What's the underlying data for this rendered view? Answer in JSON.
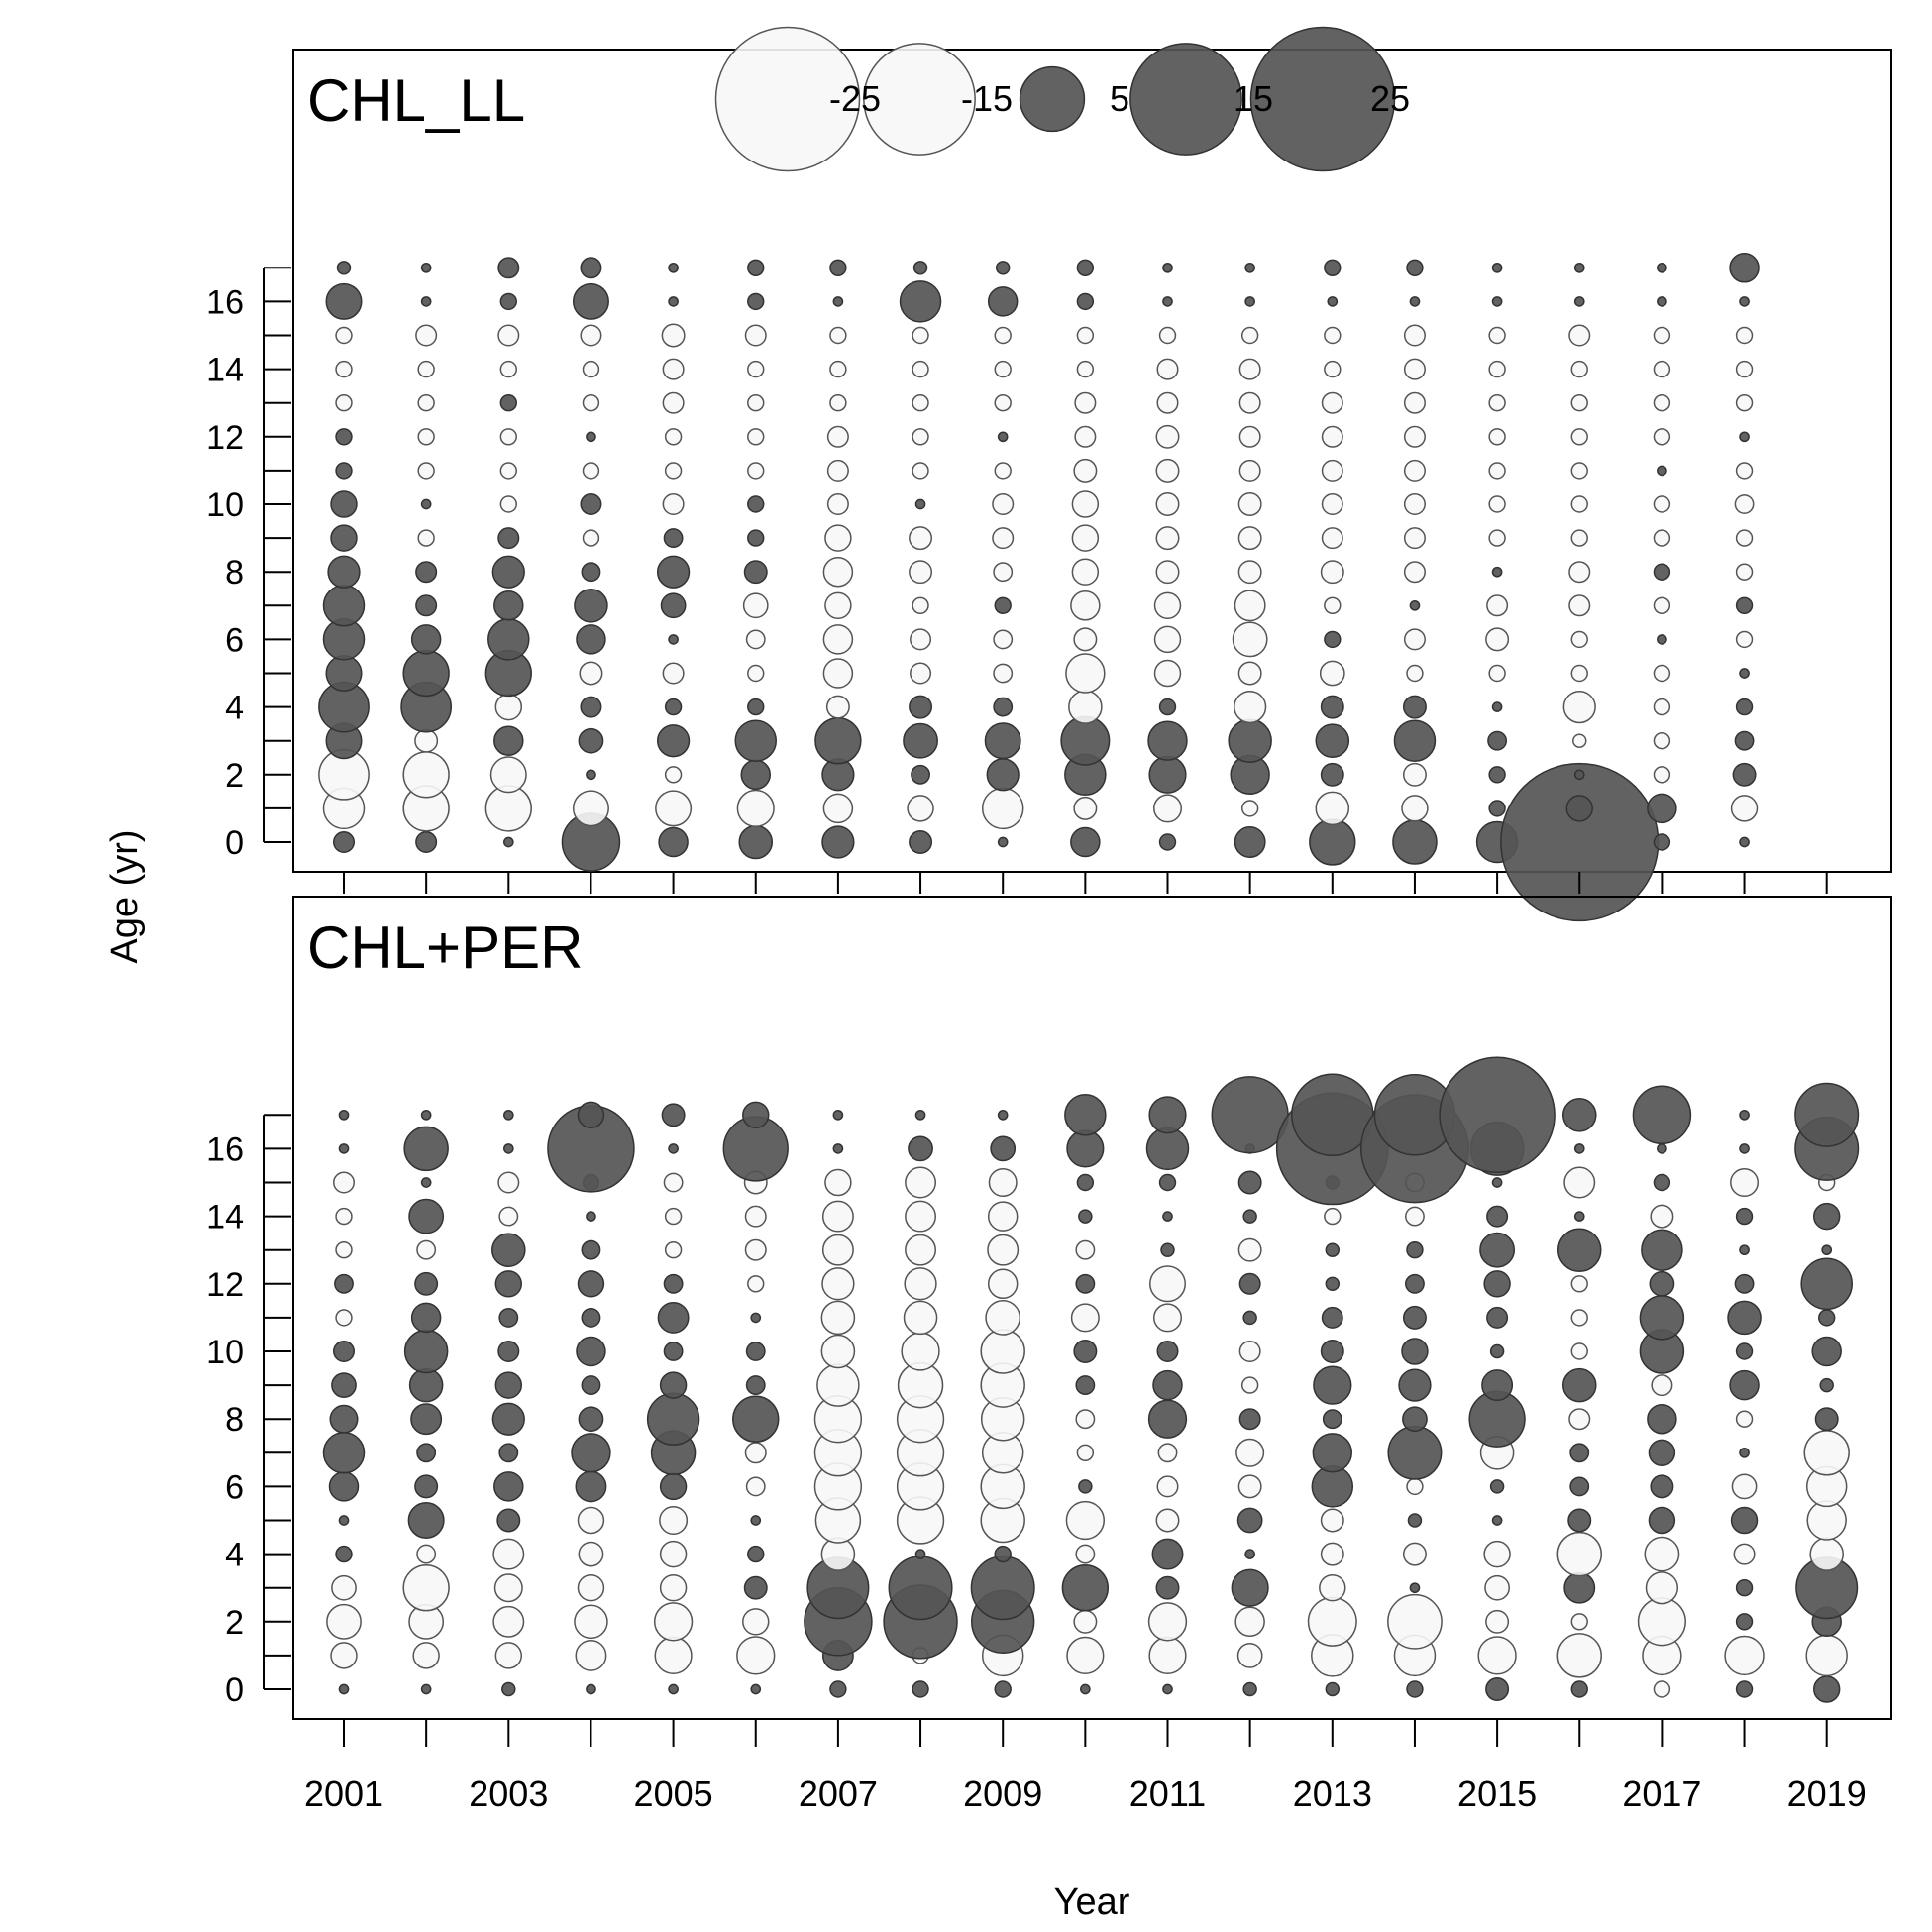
{
  "chart_data": {
    "type": "bubble",
    "x_label": "Year",
    "y_label": "Age (yr)",
    "x_ticks": [
      2001,
      2003,
      2005,
      2007,
      2009,
      2011,
      2013,
      2015,
      2017,
      2019
    ],
    "y_ticks": [
      0,
      2,
      4,
      6,
      8,
      10,
      12,
      14,
      16
    ],
    "ages": [
      0,
      1,
      2,
      3,
      4,
      5,
      6,
      7,
      8,
      9,
      10,
      11,
      12,
      13,
      14,
      15,
      16,
      17
    ],
    "years": [
      2001,
      2002,
      2003,
      2004,
      2005,
      2006,
      2007,
      2008,
      2009,
      2010,
      2011,
      2012,
      2013,
      2014,
      2015,
      2016,
      2017,
      2018,
      2019
    ],
    "positive_color": "#555555",
    "negative_color": "#f7f7f7",
    "legend": {
      "values": [
        -25,
        -15,
        5,
        15,
        25
      ],
      "labels": [
        "-25",
        "-15",
        "5",
        "15",
        "25"
      ]
    },
    "panels": [
      {
        "title": "CHL_LL",
        "note": "residual value per age (index 0..17) for each year",
        "residuals": {
          "2001": [
            0.5,
            -2,
            -3,
            1.5,
            3,
            1.5,
            2,
            2,
            1.2,
            0.8,
            0.8,
            0.3,
            0.3,
            -0.3,
            -0.3,
            -0.3,
            1.5,
            0.2
          ],
          "2002": [
            0.5,
            -2.5,
            -2.5,
            -0.6,
            3,
            2.5,
            1,
            0.5,
            0.5,
            -0.3,
            0.1,
            -0.3,
            -0.3,
            -0.3,
            -0.3,
            -0.5,
            0.1,
            0.1
          ],
          "2003": [
            0.1,
            -2.5,
            -1.5,
            1,
            -0.8,
            2.5,
            2,
            1,
            1.2,
            0.5,
            -0.3,
            -0.3,
            -0.3,
            0.3,
            -0.3,
            -0.5,
            0.3,
            0.5
          ],
          "2004": [
            4,
            -1.5,
            0.1,
            0.7,
            0.5,
            -0.6,
            1,
            1.3,
            0.4,
            -0.3,
            0.5,
            -0.3,
            0.1,
            -0.3,
            -0.3,
            -0.5,
            1.5,
            0.5
          ],
          "2005": [
            1,
            -1.5,
            -0.3,
            1.2,
            0.3,
            -0.5,
            0.1,
            0.7,
            1.2,
            0.4,
            -0.5,
            -0.3,
            -0.3,
            -0.5,
            -0.5,
            -0.6,
            0.1,
            0.1
          ],
          "2006": [
            1.3,
            -1.6,
            1,
            2,
            0.3,
            -0.3,
            -0.4,
            -0.7,
            0.6,
            0.3,
            0.3,
            -0.3,
            -0.3,
            -0.3,
            -0.3,
            -0.5,
            0.3,
            0.3
          ],
          "2007": [
            1.2,
            -1,
            1.2,
            2.5,
            -0.6,
            -1,
            -1,
            -0.8,
            -1,
            -0.8,
            -0.5,
            -0.5,
            -0.5,
            -0.3,
            -0.3,
            -0.3,
            0.1,
            0.3
          ],
          "2008": [
            0.6,
            -0.8,
            0.4,
            1.4,
            0.6,
            -0.5,
            -0.5,
            -0.3,
            -0.6,
            -0.6,
            0.1,
            -0.3,
            -0.3,
            -0.3,
            -0.3,
            -0.3,
            2,
            0.2
          ],
          "2009": [
            0.1,
            -2,
            1.2,
            1.5,
            0.4,
            -0.4,
            -0.4,
            0.3,
            -0.4,
            -0.5,
            -0.5,
            -0.3,
            0.1,
            -0.3,
            -0.3,
            -0.3,
            1,
            0.2
          ],
          "2010": [
            1,
            -0.6,
            2,
            2.8,
            -1.3,
            -1.8,
            -0.6,
            -1,
            -0.8,
            -0.8,
            -0.8,
            -0.6,
            -0.5,
            -0.5,
            -0.3,
            -0.3,
            0.3,
            0.3
          ],
          "2011": [
            0.3,
            -0.9,
            1.6,
            1.8,
            0.3,
            -0.8,
            -0.8,
            -0.8,
            -0.6,
            -0.6,
            -0.6,
            -0.6,
            -0.6,
            -0.5,
            -0.5,
            -0.3,
            0.1,
            0.1
          ],
          "2012": [
            1.1,
            -0.3,
            1.8,
            2.2,
            -1.2,
            -0.6,
            -1.4,
            -1.1,
            -0.6,
            -0.6,
            -0.6,
            -0.5,
            -0.5,
            -0.5,
            -0.5,
            -0.3,
            0.1,
            0.1
          ],
          "2013": [
            2.5,
            -1.3,
            0.6,
            1.3,
            0.6,
            -0.7,
            0.3,
            -0.3,
            -0.6,
            -0.5,
            -0.5,
            -0.5,
            -0.5,
            -0.5,
            -0.3,
            -0.3,
            0.1,
            0.3
          ],
          "2014": [
            2.3,
            -0.8,
            -0.6,
            2,
            0.6,
            -0.3,
            -0.5,
            0.1,
            -0.5,
            -0.5,
            -0.5,
            -0.5,
            -0.5,
            -0.5,
            -0.5,
            -0.5,
            0.1,
            0.3
          ],
          "2015": [
            2,
            0.3,
            0.3,
            0.4,
            0.1,
            -0.3,
            -0.6,
            -0.5,
            0.1,
            -0.3,
            -0.3,
            -0.3,
            -0.3,
            -0.3,
            -0.3,
            -0.3,
            0.1,
            0.1
          ],
          "2016": [
            30,
            0.8,
            0.1,
            -0.2,
            -1.2,
            -0.3,
            -0.3,
            -0.5,
            -0.5,
            -0.3,
            -0.3,
            -0.3,
            -0.3,
            -0.3,
            -0.3,
            -0.5,
            0.1,
            0.1
          ],
          "2017": [
            0.3,
            1,
            -0.3,
            -0.3,
            -0.3,
            -0.3,
            0.1,
            -0.3,
            0.3,
            -0.3,
            -0.3,
            0.1,
            -0.3,
            -0.3,
            -0.3,
            -0.3,
            0.1,
            0.1
          ],
          "2018": [
            0.1,
            -0.8,
            0.6,
            0.4,
            0.3,
            0.1,
            -0.3,
            0.3,
            -0.3,
            -0.3,
            -0.4,
            -0.3,
            0.1,
            -0.3,
            -0.3,
            -0.3,
            0.1,
            1
          ]
        }
      },
      {
        "title": "CHL+PER",
        "note": "residual value per age (index 0..17) for each year",
        "residuals": {
          "2001": [
            0.1,
            -0.8,
            -1.4,
            -0.7,
            0.3,
            0.1,
            1,
            2,
            0.9,
            0.7,
            0.5,
            -0.3,
            0.4,
            -0.3,
            -0.3,
            -0.5,
            0.1,
            0.1
          ],
          "2002": [
            0.1,
            -0.8,
            -1.4,
            -2.5,
            -0.4,
            1.5,
            0.6,
            0.4,
            1.1,
            1.3,
            2.2,
            1,
            0.6,
            -0.4,
            1.4,
            0.1,
            2.3,
            0.1
          ],
          "2003": [
            0.2,
            -0.8,
            -1.1,
            -0.9,
            -1.1,
            0.6,
            1,
            0.4,
            1.2,
            0.8,
            0.5,
            0.4,
            0.8,
            1.3,
            -0.4,
            -0.5,
            0.1,
            0.1
          ],
          "2004": [
            0.1,
            -1.1,
            -1.3,
            -0.8,
            -0.7,
            -0.8,
            1.1,
            1.8,
            0.7,
            0.4,
            1,
            0.4,
            0.8,
            0.4,
            0.1,
            0.3,
            9,
            0.8
          ],
          "2005": [
            0.1,
            -1.6,
            -1.7,
            -0.8,
            -0.8,
            -0.9,
            0.8,
            2.3,
            3.2,
            0.8,
            0.4,
            1.1,
            0.4,
            -0.3,
            -0.3,
            -0.4,
            0.1,
            0.6
          ],
          "2006": [
            0.1,
            -1.7,
            -0.8,
            0.6,
            0.3,
            0.1,
            -0.4,
            -0.5,
            2.5,
            0.4,
            0.4,
            0.1,
            -0.3,
            -0.5,
            -0.5,
            -0.6,
            5,
            0.8
          ],
          "2007": [
            0.3,
            1.1,
            5.5,
            4.5,
            -1.3,
            -2.4,
            -2.6,
            -2.6,
            -2.6,
            -2.1,
            -1.3,
            -1.3,
            -1.2,
            -1.1,
            -1.1,
            -0.8,
            0.1,
            0.1
          ],
          "2008": [
            0.3,
            -0.3,
            6.5,
            4.8,
            0.1,
            -2.6,
            -2.6,
            -2.6,
            -2.6,
            -2.4,
            -1.7,
            -1.3,
            -1.2,
            -1.1,
            -1.1,
            -1.1,
            0.7,
            0.1
          ],
          "2009": [
            0.3,
            -2,
            4.7,
            4.8,
            0.3,
            -2.3,
            -2.3,
            -2,
            -2.2,
            -2.3,
            -2.3,
            -1.4,
            -1,
            -1.1,
            -1,
            -0.9,
            0.7,
            0.1
          ],
          "2010": [
            0.1,
            -1.6,
            -0.6,
            2.5,
            -0.4,
            -1.7,
            0.2,
            -0.3,
            -0.4,
            0.4,
            0.6,
            -0.9,
            0.4,
            -0.4,
            0.2,
            0.3,
            1.6,
            2
          ],
          "2011": [
            0.1,
            -1.6,
            -1.7,
            0.6,
            1.1,
            -0.6,
            -0.5,
            -0.4,
            1.7,
            1,
            0.5,
            -0.9,
            -1.5,
            0.2,
            0.1,
            0.3,
            2.1,
            1.6
          ],
          "2012": [
            0.2,
            -0.7,
            -1,
            1.6,
            0.1,
            0.7,
            -0.6,
            -0.9,
            0.5,
            -0.3,
            -0.5,
            0.2,
            0.5,
            -0.6,
            0.2,
            0.6,
            0.1,
            7
          ],
          "2013": [
            0.2,
            -2.1,
            -2.8,
            -0.8,
            -0.6,
            -0.6,
            2,
            1.8,
            0.4,
            1.7,
            0.6,
            0.5,
            0.2,
            0.2,
            -0.3,
            0.2,
            15,
            8
          ],
          "2014": [
            0.3,
            -2,
            -3.5,
            0.1,
            -0.6,
            0.2,
            -0.3,
            3.4,
            0.7,
            1.2,
            0.8,
            0.6,
            0.4,
            0.3,
            -0.4,
            -0.4,
            14,
            7.8
          ],
          "2015": [
            0.6,
            -1.7,
            -0.6,
            -0.7,
            -0.8,
            0.1,
            0.2,
            -1.3,
            3.7,
            1.1,
            0.2,
            0.5,
            0.8,
            1.4,
            0.5,
            0.1,
            3.4,
            16
          ],
          "2016": [
            0.3,
            -2.3,
            -0.3,
            1.1,
            -2.3,
            0.6,
            0.4,
            0.4,
            -0.5,
            1.3,
            -0.3,
            -0.3,
            -0.3,
            2.2,
            0.1,
            -1.1,
            0.1,
            1.3
          ],
          "2017": [
            -0.3,
            -1.8,
            -2.7,
            -1.2,
            -1.4,
            0.8,
            0.6,
            0.8,
            1,
            -0.5,
            2.3,
            2.3,
            0.7,
            2,
            -0.6,
            0.3,
            0.1,
            4
          ],
          "2018": [
            0.3,
            -1.8,
            0.3,
            0.3,
            -0.5,
            0.8,
            -0.7,
            0.1,
            -0.3,
            1,
            0.3,
            1.3,
            0.4,
            0.1,
            0.3,
            -0.9,
            0.1,
            0.1
          ],
          "2019": [
            0.8,
            -2,
            1,
            4.5,
            -1.3,
            -1.8,
            -1.9,
            -2.4,
            0.6,
            0.2,
            1,
            0.3,
            3.1,
            0.1,
            0.8,
            -0.3,
            4.8,
            4.8
          ]
        }
      }
    ]
  }
}
